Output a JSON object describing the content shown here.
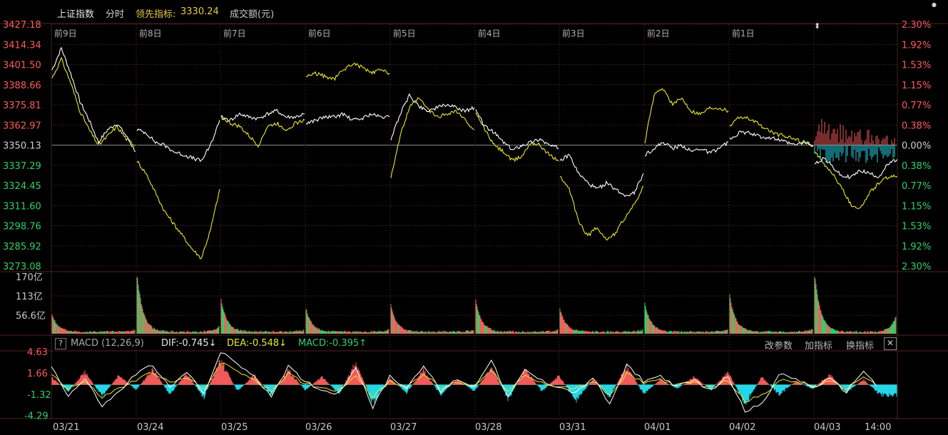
{
  "header": {
    "index_name": "上证指数",
    "mode": "分时",
    "leading_indicator_label": "领先指标:",
    "leading_indicator_value": "3330.24",
    "amount_label": "成交额(元)"
  },
  "colors": {
    "up": "#ff5a5a",
    "down": "#2ed16a",
    "index_line": "#ffffff",
    "leading_line": "#e8e82a",
    "macd_pos": "#f05a5a",
    "macd_neg": "#22d8e8",
    "grid": "#3a1c1c",
    "dea": "#e8e82a",
    "dif": "#ffffff"
  },
  "chart_data": [
    {
      "type": "line",
      "title": "上证指数 分时",
      "y_labels_left": [
        "3427.18",
        "3414.34",
        "3401.50",
        "3388.66",
        "3375.81",
        "3362.97",
        "3350.13",
        "3337.29",
        "3324.45",
        "3311.60",
        "3298.76",
        "3285.92",
        "3273.08"
      ],
      "y_labels_right": [
        "2.30%",
        "1.92%",
        "1.53%",
        "1.15%",
        "0.77%",
        "0.38%",
        "0.00%",
        "0.38%",
        "0.77%",
        "1.15%",
        "1.53%",
        "1.92%",
        "2.30%"
      ],
      "ylim": [
        3273.08,
        3427.18
      ],
      "baseline": 3350.13,
      "day_labels": [
        "前9日",
        "前8日",
        "前7日",
        "前6日",
        "前5日",
        "前4日",
        "前3日",
        "前2日",
        "前1日",
        ""
      ],
      "series": [
        {
          "name": "index",
          "days": [
            [
              3398,
              3412,
              3396,
              3378,
              3366,
              3352,
              3360,
              3364,
              3356,
              3346
            ],
            [
              3360,
              3358,
              3352,
              3350,
              3346,
              3344,
              3342,
              3340,
              3350,
              3366
            ],
            [
              3368,
              3366,
              3370,
              3368,
              3367,
              3370,
              3372,
              3368,
              3368,
              3370
            ],
            [
              3364,
              3366,
              3368,
              3368,
              3370,
              3366,
              3367,
              3370,
              3368,
              3368
            ],
            [
              3354,
              3370,
              3382,
              3375,
              3372,
              3374,
              3376,
              3374,
              3372,
              3374
            ],
            [
              3372,
              3362,
              3358,
              3352,
              3347,
              3350,
              3352,
              3354,
              3350,
              3348
            ],
            [
              3340,
              3344,
              3332,
              3326,
              3322,
              3326,
              3322,
              3318,
              3320,
              3332
            ],
            [
              3344,
              3348,
              3352,
              3348,
              3350,
              3346,
              3348,
              3345,
              3348,
              3352
            ],
            [
              3354,
              3358,
              3358,
              3356,
              3355,
              3354,
              3352,
              3350,
              3352,
              3350
            ],
            [
              3338,
              3342,
              3336,
              3330,
              3330,
              3334,
              3332,
              3330,
              3338,
              3341
            ]
          ]
        },
        {
          "name": "leading",
          "days": [
            [
              3393,
              3405,
              3390,
              3372,
              3360,
              3350,
              3356,
              3362,
              3354,
              3350
            ],
            [
              3340,
              3332,
              3320,
              3308,
              3300,
              3292,
              3284,
              3278,
              3296,
              3322
            ],
            [
              3368,
              3364,
              3362,
              3356,
              3350,
              3362,
              3364,
              3360,
              3364,
              3366
            ],
            [
              3394,
              3396,
              3394,
              3392,
              3398,
              3402,
              3400,
              3396,
              3398,
              3396
            ],
            [
              3330,
              3356,
              3374,
              3380,
              3373,
              3368,
              3370,
              3372,
              3366,
              3360
            ],
            [
              3370,
              3360,
              3350,
              3346,
              3340,
              3343,
              3352,
              3350,
              3344,
              3340
            ],
            [
              3330,
              3322,
              3302,
              3292,
              3298,
              3290,
              3294,
              3304,
              3312,
              3324
            ],
            [
              3352,
              3382,
              3386,
              3376,
              3380,
              3372,
              3370,
              3374,
              3374,
              3372
            ],
            [
              3362,
              3368,
              3367,
              3364,
              3360,
              3357,
              3356,
              3354,
              3352,
              3350
            ],
            [
              3346,
              3338,
              3332,
              3322,
              3312,
              3310,
              3320,
              3326,
              3330,
              3330
            ]
          ]
        }
      ]
    },
    {
      "type": "bar",
      "title": "成交额",
      "y_labels": [
        "170亿",
        "113亿",
        "56.6亿"
      ],
      "ylim": [
        0,
        170
      ],
      "day_open_peak": [
        52,
        178,
        98,
        70,
        80,
        96,
        70,
        86,
        110,
        180
      ],
      "day_close_peak": [
        6,
        18,
        6,
        8,
        6,
        6,
        6,
        6,
        6,
        52
      ],
      "day_base": [
        3,
        3,
        3,
        3,
        3,
        3,
        3,
        3,
        3,
        3
      ]
    },
    {
      "type": "bar",
      "title": "MACD",
      "indicator_label": "MACD (12,26,9)",
      "dif_label": "DIF:-0.745↓",
      "dea_label": "DEA:-0.548↓",
      "macd_label": "MACD:-0.395↑",
      "y_labels": [
        "4.63",
        "1.66",
        "-1.32",
        "-4.29"
      ],
      "ylim": [
        -4.63,
        4.63
      ],
      "x_labels": [
        "03/21",
        "03/24",
        "03/25",
        "03/26",
        "03/27",
        "03/28",
        "03/31",
        "04/01",
        "04/02",
        "04/03",
        "14:00"
      ],
      "macd_hist": [
        1.2,
        -1.0,
        2.0,
        -1.8,
        1.5,
        -0.8,
        2.4,
        -1.5,
        1.8,
        -2.0,
        3.8,
        -1.0,
        1.5,
        -1.6,
        2.2,
        -0.8,
        1.2,
        -1.4,
        3.4,
        -2.8,
        1.0,
        -1.2,
        2.2,
        -1.5,
        0.8,
        -1.0,
        2.6,
        -2.2,
        2.4,
        -1.0,
        1.4,
        -2.4,
        0.8,
        -1.8,
        2.8,
        -1.4,
        0.8,
        -0.6,
        1.2,
        -0.8,
        2.0,
        -3.0,
        1.2,
        -1.5,
        0.5,
        -0.6,
        1.6,
        -1.2,
        0.8,
        -1.6
      ],
      "dif": [
        2.6,
        -1.5,
        0.8,
        -3.0,
        -1.0,
        1.5,
        2.8,
        -0.5,
        1.8,
        -1.2,
        4.5,
        3.0,
        1.0,
        -1.5,
        2.5,
        0.5,
        -0.8,
        -1.2,
        2.5,
        -3.2,
        1.2,
        -0.5,
        2.8,
        -1.0,
        0.8,
        -0.4,
        3.6,
        -1.8,
        2.0,
        0.5,
        -0.3,
        -1.2,
        1.0,
        -2.8,
        2.8,
        0.5,
        1.2,
        -0.3,
        0.6,
        -0.8,
        1.2,
        -3.6,
        -2.8,
        1.5,
        0.8,
        -0.4,
        0.8,
        -1.0,
        2.0,
        -0.8
      ],
      "dea": [
        1.5,
        -0.5,
        0.4,
        -1.8,
        -0.5,
        0.6,
        1.8,
        0.2,
        1.0,
        -0.6,
        3.0,
        2.0,
        0.5,
        -0.8,
        1.5,
        0.2,
        -0.4,
        -0.8,
        1.4,
        -1.8,
        0.5,
        -0.3,
        1.6,
        -0.6,
        0.4,
        -0.2,
        2.2,
        -1.0,
        1.2,
        0.2,
        -0.2,
        -0.6,
        0.5,
        -1.6,
        1.6,
        0.3,
        0.7,
        -0.1,
        0.3,
        -0.4,
        0.6,
        -2.2,
        -1.6,
        0.6,
        0.4,
        -0.2,
        0.4,
        -0.6,
        1.2,
        -0.5
      ]
    }
  ],
  "macd_toolbar": {
    "help": "?",
    "change_params": "改参数",
    "add_indicator": "加指标",
    "switch_indicator": "换指标",
    "close": "✕"
  }
}
